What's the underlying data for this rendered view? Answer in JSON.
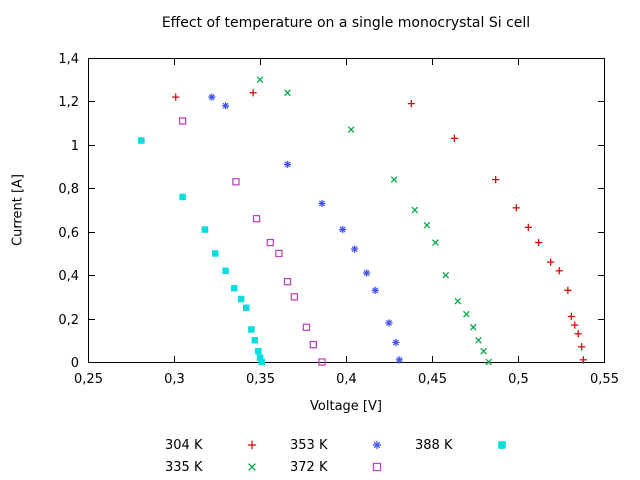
{
  "chart_data": {
    "type": "scatter",
    "title": "Effect of temperature on a single monocrystal Si cell",
    "xlabel": "Voltage [V]",
    "ylabel": "Current [A]",
    "xlim": [
      0.25,
      0.55
    ],
    "ylim": [
      0,
      1.4
    ],
    "grid": false,
    "legend_position": "bottom-center",
    "background_color": "#ffffff",
    "axis_color": "#000000",
    "x_ticks": {
      "values": [
        0.25,
        0.3,
        0.35,
        0.4,
        0.45,
        0.5,
        0.55
      ],
      "labels": [
        "0,25",
        "0,3",
        "0,35",
        "0,4",
        "0,45",
        "0,5",
        "0,55"
      ]
    },
    "y_ticks": {
      "values": [
        0,
        0.2,
        0.4,
        0.6,
        0.8,
        1,
        1.2,
        1.4
      ],
      "labels": [
        "0",
        "0,2",
        "0,4",
        "0,6",
        "0,8",
        "1",
        "1,2",
        "1,4"
      ]
    },
    "series": [
      {
        "name": "304 K",
        "marker": "plus",
        "color": "#dd0000",
        "points": [
          [
            0.301,
            1.22
          ],
          [
            0.346,
            1.24
          ],
          [
            0.438,
            1.19
          ],
          [
            0.463,
            1.03
          ],
          [
            0.487,
            0.84
          ],
          [
            0.499,
            0.71
          ],
          [
            0.506,
            0.62
          ],
          [
            0.512,
            0.55
          ],
          [
            0.519,
            0.46
          ],
          [
            0.524,
            0.42
          ],
          [
            0.529,
            0.33
          ],
          [
            0.531,
            0.21
          ],
          [
            0.533,
            0.17
          ],
          [
            0.535,
            0.13
          ],
          [
            0.537,
            0.07
          ],
          [
            0.538,
            0.01
          ]
        ]
      },
      {
        "name": "335 K",
        "marker": "x",
        "color": "#00a642",
        "points": [
          [
            0.35,
            1.3
          ],
          [
            0.366,
            1.24
          ],
          [
            0.403,
            1.07
          ],
          [
            0.428,
            0.84
          ],
          [
            0.44,
            0.7
          ],
          [
            0.447,
            0.63
          ],
          [
            0.452,
            0.55
          ],
          [
            0.458,
            0.4
          ],
          [
            0.465,
            0.28
          ],
          [
            0.47,
            0.22
          ],
          [
            0.474,
            0.16
          ],
          [
            0.477,
            0.1
          ],
          [
            0.48,
            0.05
          ],
          [
            0.483,
            0
          ]
        ]
      },
      {
        "name": "353 K",
        "marker": "asterisk",
        "color": "#4455ee",
        "points": [
          [
            0.322,
            1.22
          ],
          [
            0.33,
            1.18
          ],
          [
            0.366,
            0.91
          ],
          [
            0.386,
            0.73
          ],
          [
            0.398,
            0.61
          ],
          [
            0.405,
            0.52
          ],
          [
            0.412,
            0.41
          ],
          [
            0.417,
            0.33
          ],
          [
            0.425,
            0.18
          ],
          [
            0.429,
            0.09
          ],
          [
            0.431,
            0.01
          ]
        ]
      },
      {
        "name": "372 K",
        "marker": "open-square",
        "color": "#bb44bb",
        "points": [
          [
            0.305,
            1.11
          ],
          [
            0.336,
            0.83
          ],
          [
            0.348,
            0.66
          ],
          [
            0.356,
            0.55
          ],
          [
            0.361,
            0.5
          ],
          [
            0.366,
            0.37
          ],
          [
            0.37,
            0.3
          ],
          [
            0.377,
            0.16
          ],
          [
            0.381,
            0.08
          ],
          [
            0.386,
            0
          ]
        ]
      },
      {
        "name": "388 K",
        "marker": "filled-square",
        "color": "#00dede",
        "points": [
          [
            0.281,
            1.02
          ],
          [
            0.305,
            0.76
          ],
          [
            0.318,
            0.61
          ],
          [
            0.324,
            0.5
          ],
          [
            0.33,
            0.42
          ],
          [
            0.335,
            0.34
          ],
          [
            0.339,
            0.29
          ],
          [
            0.342,
            0.25
          ],
          [
            0.345,
            0.15
          ],
          [
            0.347,
            0.1
          ],
          [
            0.349,
            0.05
          ],
          [
            0.35,
            0.02
          ],
          [
            0.351,
            0
          ]
        ]
      }
    ],
    "legend_rows": [
      [
        "304 K",
        "353 K",
        "388 K"
      ],
      [
        "335 K",
        "372 K"
      ]
    ]
  }
}
